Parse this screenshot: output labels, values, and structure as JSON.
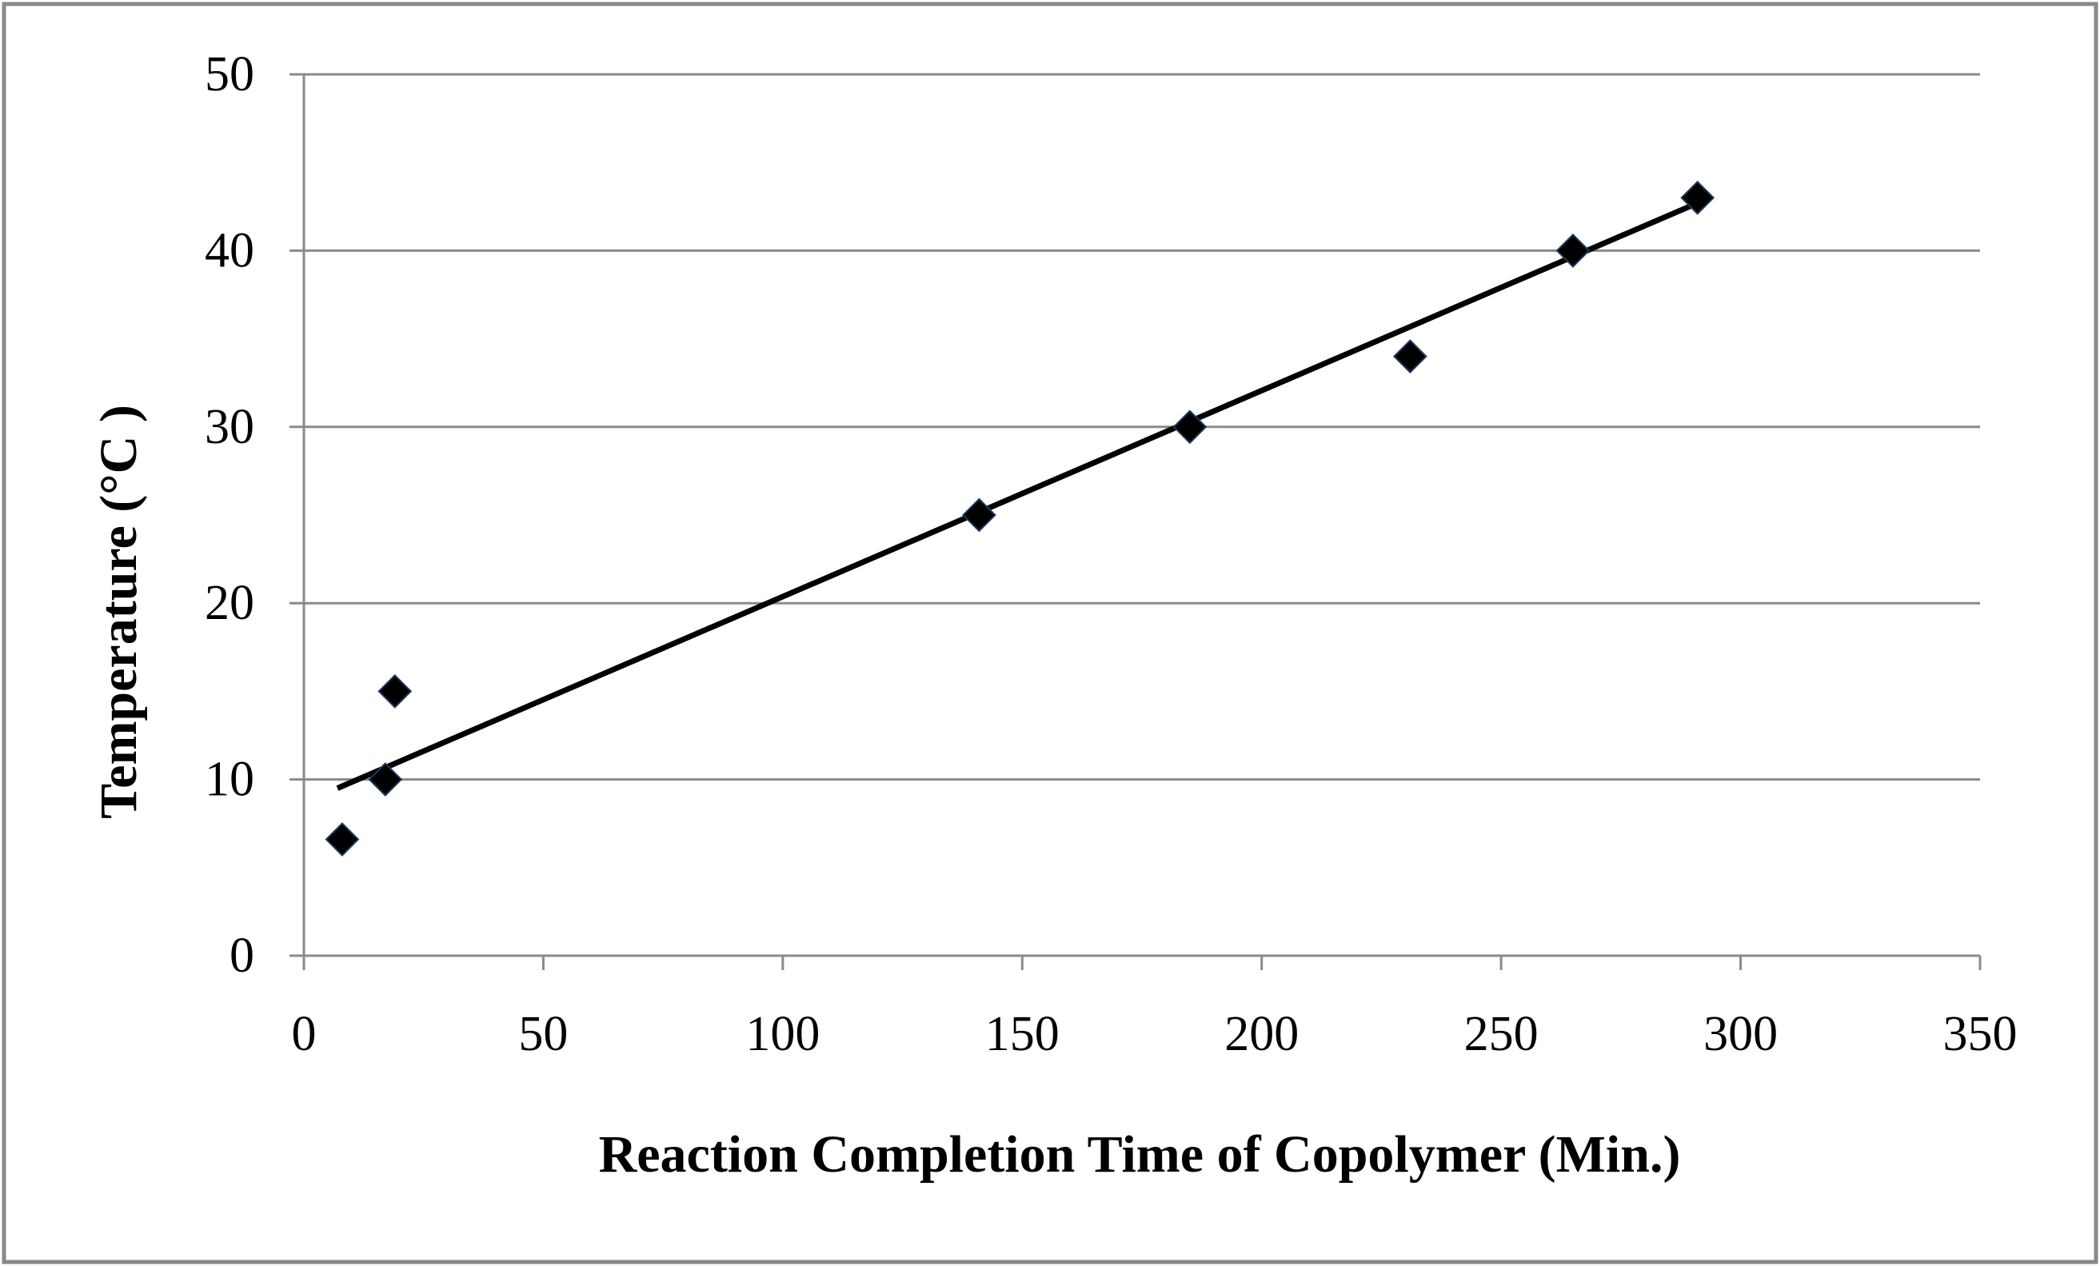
{
  "chart_data": {
    "type": "scatter",
    "title": "",
    "xlabel": "Reaction Completion Time of Copolymer (Min.)",
    "ylabel": "Temperature (°C )",
    "xlim": [
      0,
      350
    ],
    "ylim": [
      0,
      50
    ],
    "x_ticks": [
      0,
      50,
      100,
      150,
      200,
      250,
      300,
      350
    ],
    "y_ticks": [
      0,
      10,
      20,
      30,
      40,
      50
    ],
    "grid": "horizontal",
    "legend": "none",
    "series": [
      {
        "marker": "diamond",
        "color": "#000000",
        "points": [
          {
            "x": 8,
            "y": 6.6
          },
          {
            "x": 17,
            "y": 10
          },
          {
            "x": 19,
            "y": 15
          },
          {
            "x": 141,
            "y": 25
          },
          {
            "x": 185,
            "y": 30
          },
          {
            "x": 231,
            "y": 34
          },
          {
            "x": 265,
            "y": 40
          },
          {
            "x": 291,
            "y": 43
          }
        ]
      }
    ],
    "trendline": {
      "type": "linear",
      "color": "#000000",
      "x_start": 7,
      "x_end": 291,
      "y_start": 9.5,
      "y_end": 42.7
    }
  },
  "colors": {
    "frame_border": "#888888",
    "gridline": "#8a8a8a",
    "axis": "#8a8a8a",
    "marker_fill": "#000000",
    "marker_edge": "#1f3a5f"
  }
}
